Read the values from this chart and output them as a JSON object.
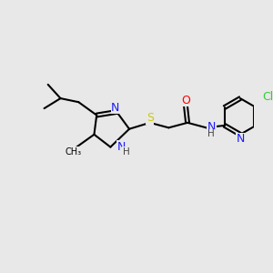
{
  "bg_color": "#e8e8e8",
  "bond_lw": 1.5,
  "figsize": [
    3.0,
    3.0
  ],
  "dpi": 100,
  "colors": {
    "N": "#1a1aff",
    "O": "#ff0000",
    "S": "#cccc00",
    "Cl": "#33cc33",
    "C": "#000000",
    "H": "#444444"
  },
  "font_size": 9,
  "font_size_sub": 7.5
}
